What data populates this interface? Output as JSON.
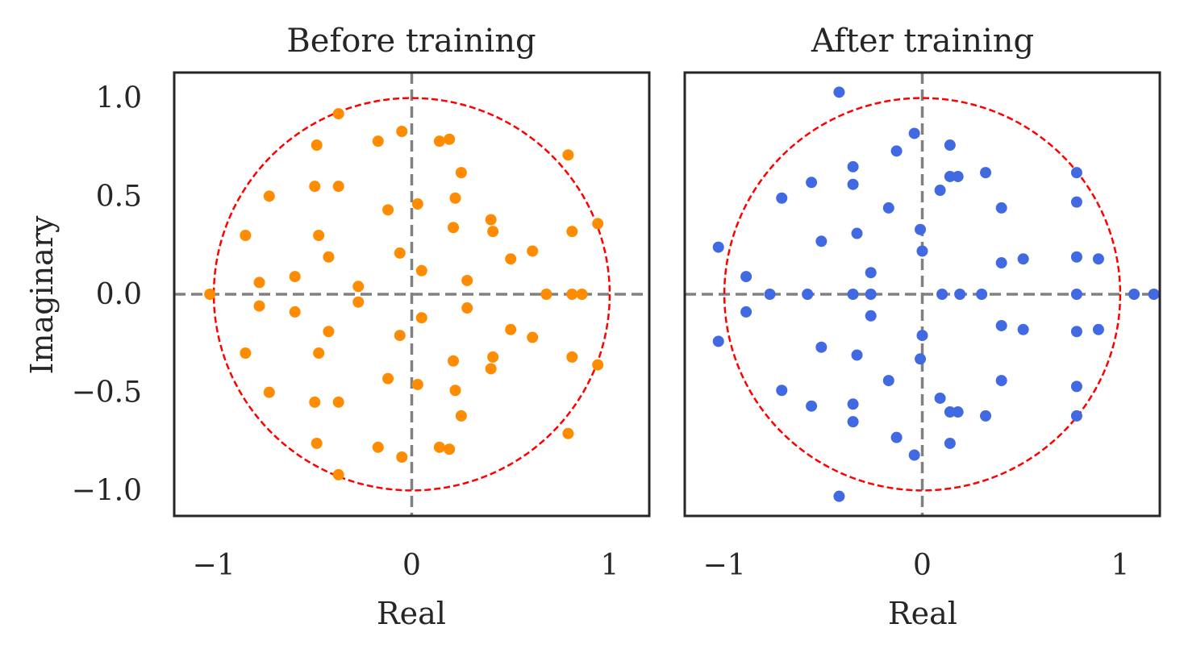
{
  "colors": {
    "before_points": "#ff8c00",
    "after_points": "#4169e1",
    "unit_circle": "#ff0000",
    "axis_lines": "#808080",
    "frame": "#262626"
  },
  "chart_data": [
    {
      "type": "scatter",
      "title": "Before training",
      "xlabel": "Real",
      "ylabel": "Imaginary",
      "xlim": [
        -1.2,
        1.2
      ],
      "ylim": [
        -1.13,
        1.13
      ],
      "xticks": [
        -1,
        0,
        1
      ],
      "xtick_labels": [
        "−1",
        "0",
        "1"
      ],
      "yticks": [
        1.0,
        0.5,
        0.0,
        -0.5,
        -1.0
      ],
      "ytick_labels": [
        "1.0",
        "0.5",
        "0.0",
        "−0.5",
        "−1.0"
      ],
      "grid": false,
      "reference": "unit circle (dashed) with dashed axes at x=0 and y=0",
      "series": [
        {
          "color": "#ff8c00",
          "points": [
            [
              -1.02,
              0.0
            ],
            [
              -0.84,
              0.3
            ],
            [
              -0.84,
              -0.3
            ],
            [
              -0.77,
              0.06
            ],
            [
              -0.77,
              -0.06
            ],
            [
              -0.72,
              0.5
            ],
            [
              -0.72,
              -0.5
            ],
            [
              -0.59,
              0.09
            ],
            [
              -0.59,
              -0.09
            ],
            [
              -0.49,
              0.55
            ],
            [
              -0.49,
              -0.55
            ],
            [
              -0.48,
              0.76
            ],
            [
              -0.48,
              -0.76
            ],
            [
              -0.47,
              0.3
            ],
            [
              -0.47,
              -0.3
            ],
            [
              -0.42,
              0.19
            ],
            [
              -0.42,
              -0.19
            ],
            [
              -0.37,
              0.55
            ],
            [
              -0.37,
              -0.55
            ],
            [
              -0.37,
              0.92
            ],
            [
              -0.37,
              -0.92
            ],
            [
              -0.27,
              0.04
            ],
            [
              -0.27,
              -0.04
            ],
            [
              -0.17,
              0.78
            ],
            [
              -0.17,
              -0.78
            ],
            [
              -0.12,
              0.43
            ],
            [
              -0.12,
              -0.43
            ],
            [
              -0.06,
              0.21
            ],
            [
              -0.06,
              -0.21
            ],
            [
              -0.05,
              0.83
            ],
            [
              -0.05,
              -0.83
            ],
            [
              0.03,
              0.46
            ],
            [
              0.03,
              -0.46
            ],
            [
              0.05,
              0.12
            ],
            [
              0.05,
              -0.12
            ],
            [
              0.14,
              0.78
            ],
            [
              0.14,
              -0.78
            ],
            [
              0.19,
              0.79
            ],
            [
              0.19,
              -0.79
            ],
            [
              0.21,
              0.34
            ],
            [
              0.21,
              -0.34
            ],
            [
              0.22,
              0.49
            ],
            [
              0.22,
              -0.49
            ],
            [
              0.25,
              0.62
            ],
            [
              0.25,
              -0.62
            ],
            [
              0.28,
              0.07
            ],
            [
              0.28,
              -0.07
            ],
            [
              0.4,
              0.38
            ],
            [
              0.4,
              -0.38
            ],
            [
              0.41,
              0.32
            ],
            [
              0.41,
              -0.32
            ],
            [
              0.5,
              0.18
            ],
            [
              0.5,
              -0.18
            ],
            [
              0.61,
              0.22
            ],
            [
              0.61,
              -0.22
            ],
            [
              0.68,
              0.0
            ],
            [
              0.79,
              0.71
            ],
            [
              0.79,
              -0.71
            ],
            [
              0.81,
              0.32
            ],
            [
              0.81,
              -0.32
            ],
            [
              0.81,
              0.0
            ],
            [
              0.86,
              0.0
            ],
            [
              0.94,
              0.36
            ],
            [
              0.94,
              -0.36
            ]
          ]
        }
      ]
    },
    {
      "type": "scatter",
      "title": "After training",
      "xlabel": "Real",
      "xlim": [
        -1.2,
        1.2
      ],
      "ylim": [
        -1.13,
        1.13
      ],
      "xticks": [
        -1,
        0,
        1
      ],
      "xtick_labels": [
        "−1",
        "0",
        "1"
      ],
      "grid": false,
      "reference": "unit circle (dashed) with dashed axes at x=0 and y=0",
      "series": [
        {
          "color": "#4169e1",
          "points": [
            [
              -1.03,
              0.24
            ],
            [
              -1.03,
              -0.24
            ],
            [
              -0.89,
              0.09
            ],
            [
              -0.89,
              -0.09
            ],
            [
              -0.77,
              0.0
            ],
            [
              -0.71,
              0.49
            ],
            [
              -0.71,
              -0.49
            ],
            [
              -0.58,
              0.0
            ],
            [
              -0.56,
              0.57
            ],
            [
              -0.56,
              -0.57
            ],
            [
              -0.51,
              0.27
            ],
            [
              -0.51,
              -0.27
            ],
            [
              -0.42,
              1.03
            ],
            [
              -0.42,
              -1.03
            ],
            [
              -0.35,
              0.65
            ],
            [
              -0.35,
              -0.65
            ],
            [
              -0.35,
              0.56
            ],
            [
              -0.35,
              -0.56
            ],
            [
              -0.33,
              0.31
            ],
            [
              -0.33,
              -0.31
            ],
            [
              -0.26,
              0.11
            ],
            [
              -0.26,
              -0.11
            ],
            [
              -0.26,
              0.0
            ],
            [
              -0.35,
              0.0
            ],
            [
              -0.17,
              0.44
            ],
            [
              -0.17,
              -0.44
            ],
            [
              -0.13,
              0.73
            ],
            [
              -0.13,
              -0.73
            ],
            [
              -0.04,
              0.82
            ],
            [
              -0.04,
              -0.82
            ],
            [
              -0.01,
              0.33
            ],
            [
              -0.01,
              -0.33
            ],
            [
              0.0,
              0.22
            ],
            [
              0.0,
              -0.21
            ],
            [
              0.09,
              0.53
            ],
            [
              0.09,
              -0.53
            ],
            [
              0.1,
              0.0
            ],
            [
              0.14,
              0.76
            ],
            [
              0.14,
              -0.76
            ],
            [
              0.14,
              0.6
            ],
            [
              0.14,
              -0.6
            ],
            [
              0.18,
              0.6
            ],
            [
              0.18,
              -0.6
            ],
            [
              0.19,
              0.0
            ],
            [
              0.3,
              0.0
            ],
            [
              0.32,
              0.62
            ],
            [
              0.32,
              -0.62
            ],
            [
              0.4,
              0.44
            ],
            [
              0.4,
              -0.44
            ],
            [
              0.4,
              0.16
            ],
            [
              0.4,
              -0.16
            ],
            [
              0.51,
              0.18
            ],
            [
              0.51,
              -0.18
            ],
            [
              0.78,
              0.62
            ],
            [
              0.78,
              -0.62
            ],
            [
              0.78,
              0.47
            ],
            [
              0.78,
              -0.47
            ],
            [
              0.78,
              0.19
            ],
            [
              0.78,
              -0.19
            ],
            [
              0.78,
              0.0
            ],
            [
              0.89,
              0.18
            ],
            [
              0.89,
              -0.18
            ],
            [
              1.07,
              0.0
            ],
            [
              1.17,
              0.0
            ]
          ]
        }
      ]
    }
  ]
}
